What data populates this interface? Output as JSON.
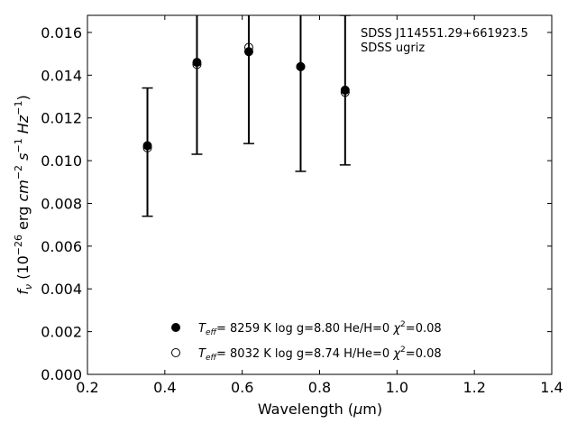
{
  "chart_data": {
    "type": "scatter",
    "xlabel": "Wavelength (μm)",
    "ylabel": "f_ν (10^-26 erg cm^-2 s^-1 Hz^-1)",
    "xlim": [
      0.2,
      1.4
    ],
    "ylim": [
      0.0,
      0.0168
    ],
    "x_ticks": [
      0.2,
      0.4,
      0.6,
      0.8,
      1.0,
      1.2,
      1.4
    ],
    "x_tick_labels": [
      "0.2",
      "0.4",
      "0.6",
      "0.8",
      "1.0",
      "1.2",
      "1.4"
    ],
    "y_ticks": [
      0.0,
      0.002,
      0.004,
      0.006,
      0.008,
      0.01,
      0.012,
      0.014,
      0.016
    ],
    "y_tick_labels": [
      "0.000",
      "0.002",
      "0.004",
      "0.006",
      "0.008",
      "0.010",
      "0.012",
      "0.014",
      "0.016"
    ],
    "grid": false,
    "annotations": [
      "SDSS J114551.29+661923.5",
      "SDSS ugriz"
    ],
    "legend_position": "bottom-center",
    "observed": {
      "x": [
        0.355,
        0.483,
        0.617,
        0.751,
        0.866
      ],
      "y": [
        0.0104,
        0.0145,
        0.0151,
        0.0144,
        0.0133
      ],
      "err": [
        0.003,
        0.0042,
        0.0043,
        0.0049,
        0.0035
      ]
    },
    "series": [
      {
        "name": "Teff= 8259 K  log g=8.80  He/H=0  χ2=0.08",
        "marker": "filled-circle",
        "x": [
          0.355,
          0.483,
          0.617,
          0.751,
          0.866
        ],
        "y": [
          0.0107,
          0.0146,
          0.0151,
          0.0144,
          0.0133
        ]
      },
      {
        "name": "Teff= 8032 K  log g=8.74  H/He=0  χ2=0.08",
        "marker": "open-circle",
        "x": [
          0.355,
          0.483,
          0.617,
          0.751,
          0.866
        ],
        "y": [
          0.0106,
          0.0145,
          0.0153,
          0.0144,
          0.0132
        ]
      }
    ],
    "legend": [
      {
        "marker": "filled-circle",
        "teff": "8259",
        "logg": "8.80",
        "comp": "He/H=0",
        "chi2": "0.08"
      },
      {
        "marker": "open-circle",
        "teff": "8032",
        "logg": "8.74",
        "comp": "H/He=0",
        "chi2": "0.08"
      }
    ]
  }
}
